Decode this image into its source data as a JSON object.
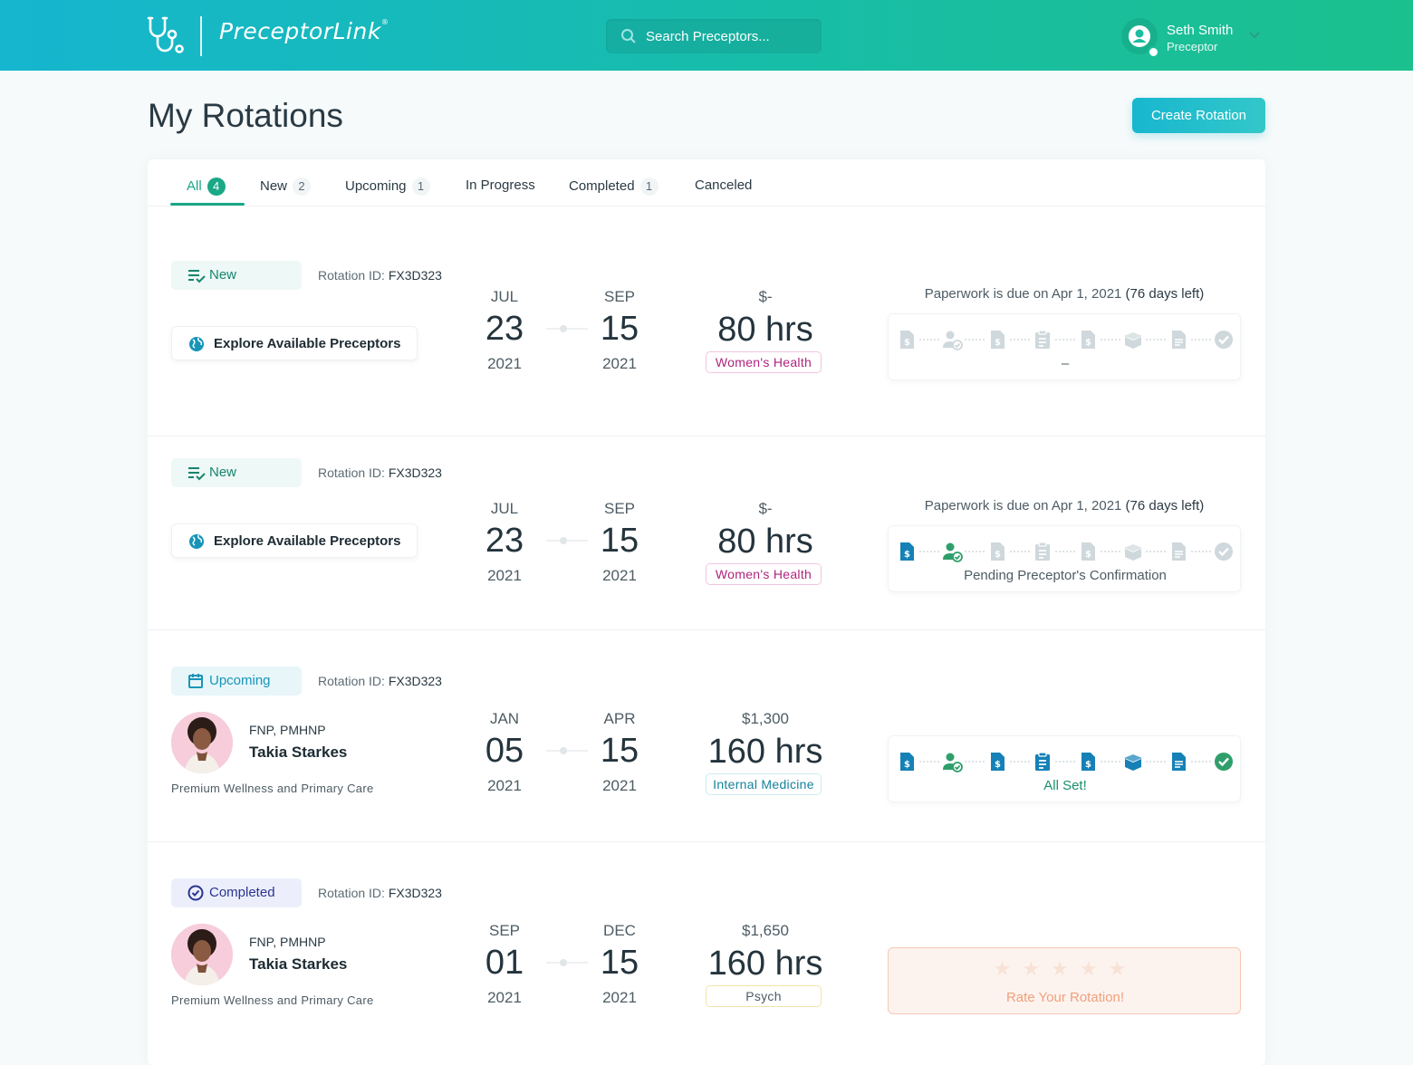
{
  "header": {
    "brand": "PreceptorLink",
    "search_placeholder": "Search Preceptors...",
    "user_name": "Seth Smith",
    "user_role": "Preceptor"
  },
  "page": {
    "title": "My Rotations",
    "create_button": "Create Rotation"
  },
  "tabs": [
    {
      "label": "All",
      "count": "4"
    },
    {
      "label": "New",
      "count": "2"
    },
    {
      "label": "Upcoming",
      "count": "1"
    },
    {
      "label": "In Progress",
      "count": ""
    },
    {
      "label": "Completed",
      "count": "1"
    },
    {
      "label": "Canceled",
      "count": ""
    }
  ],
  "rotations": [
    {
      "status": "New",
      "rotation_id_label": "Rotation ID:",
      "rotation_id": "FX3D323",
      "explore_label": "Explore Available Preceptors",
      "start": {
        "mon": "JUL",
        "day": "23",
        "yr": "2021"
      },
      "end": {
        "mon": "SEP",
        "day": "15",
        "yr": "2021"
      },
      "amount": "$-",
      "hours": "80 hrs",
      "specialty": "Women's Health",
      "paperwork_note": "Paperwork is due on Apr 1, 2021",
      "paperwork_days": "(76 days left)",
      "paperwork_status": "–"
    },
    {
      "status": "New",
      "rotation_id_label": "Rotation ID:",
      "rotation_id": "FX3D323",
      "explore_label": "Explore Available Preceptors",
      "start": {
        "mon": "JUL",
        "day": "23",
        "yr": "2021"
      },
      "end": {
        "mon": "SEP",
        "day": "15",
        "yr": "2021"
      },
      "amount": "$-",
      "hours": "80 hrs",
      "specialty": "Women's Health",
      "paperwork_note": "Paperwork is due on Apr 1, 2021",
      "paperwork_days": "(76 days left)",
      "paperwork_status": "Pending Preceptor's Confirmation"
    },
    {
      "status": "Upcoming",
      "rotation_id_label": "Rotation ID:",
      "rotation_id": "FX3D323",
      "credentials": "FNP, PMHNP",
      "preceptor_name": "Takia Starkes",
      "practice": "Premium Wellness and Primary Care",
      "start": {
        "mon": "JAN",
        "day": "05",
        "yr": "2021"
      },
      "end": {
        "mon": "APR",
        "day": "15",
        "yr": "2021"
      },
      "amount": "$1,300",
      "hours": "160 hrs",
      "specialty": "Internal Medicine",
      "paperwork_status": "All Set!"
    },
    {
      "status": "Completed",
      "rotation_id_label": "Rotation ID:",
      "rotation_id": "FX3D323",
      "credentials": "FNP, PMHNP",
      "preceptor_name": "Takia Starkes",
      "practice": "Premium Wellness and Primary Care",
      "start": {
        "mon": "SEP",
        "day": "01",
        "yr": "2021"
      },
      "end": {
        "mon": "DEC",
        "day": "15",
        "yr": "2021"
      },
      "amount": "$1,650",
      "hours": "160 hrs",
      "specialty": "Psych",
      "rate_label": "Rate Your Rotation!"
    }
  ],
  "paperwork_steps": [
    "invoice-doc-icon",
    "user-check-icon",
    "invoice-doc-icon",
    "clipboard-icon",
    "invoice-doc-icon",
    "open-box-icon",
    "document-icon",
    "check-circle-icon"
  ],
  "colors": {
    "header_start": "#15b6cf",
    "header_end": "#1bc08e",
    "accent_green": "#1aa887",
    "step_done_blue": "#1681b6",
    "step_done_green": "#2e9f6b",
    "step_pending": "#cfd8dc",
    "specialty_pink": "#b0247d"
  }
}
